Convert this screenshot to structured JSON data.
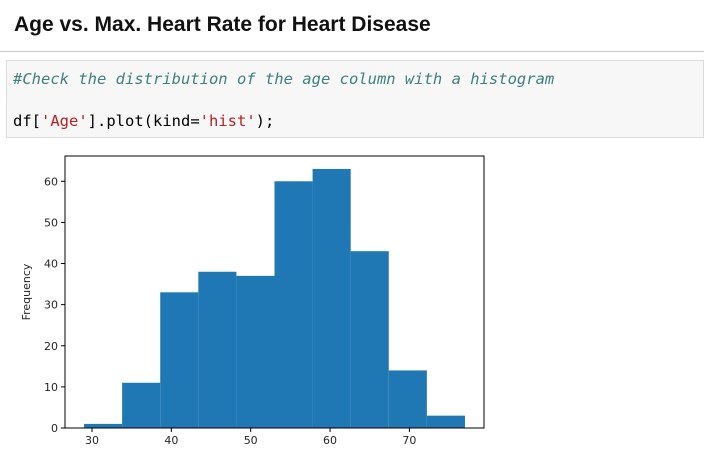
{
  "page": {
    "title": "Age vs. Max. Heart Rate for Heart Disease"
  },
  "code_cell": {
    "comment": "#Check the distribution of the age column with a histogram",
    "code_prefix": "df[",
    "code_string1": "'Age'",
    "code_middle": "].plot(kind=",
    "code_string2": "'hist'",
    "code_suffix": ");"
  },
  "colors": {
    "bar": "#1f77b4",
    "comment": "#408080",
    "string": "#ba2121"
  },
  "chart_data": {
    "type": "bar",
    "subtype": "histogram",
    "title": "",
    "xlabel": "",
    "ylabel": "Frequency",
    "xlim": [
      26.6,
      79.4
    ],
    "ylim": [
      0,
      66.15
    ],
    "bins": [
      [
        29.0,
        33.8
      ],
      [
        33.8,
        38.6
      ],
      [
        38.6,
        43.4
      ],
      [
        43.4,
        48.2
      ],
      [
        48.2,
        53.0
      ],
      [
        53.0,
        57.8
      ],
      [
        57.8,
        62.6
      ],
      [
        62.6,
        67.4
      ],
      [
        67.4,
        72.2
      ],
      [
        72.2,
        77.0
      ]
    ],
    "values": [
      1,
      11,
      33,
      38,
      37,
      60,
      63,
      43,
      14,
      3
    ],
    "xticks": [
      30,
      40,
      50,
      60,
      70
    ],
    "xtick_labels": [
      "30",
      "40",
      "50",
      "60",
      "70"
    ],
    "yticks": [
      0,
      10,
      20,
      30,
      40,
      50,
      60
    ],
    "ytick_labels": [
      "0",
      "10",
      "20",
      "30",
      "40",
      "50",
      "60"
    ],
    "grid": false,
    "legend": "none"
  }
}
